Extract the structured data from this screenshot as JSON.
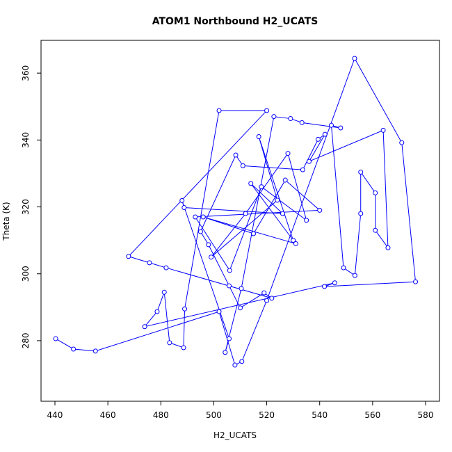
{
  "chart_data": {
    "type": "line",
    "title": "ATOM1 Northbound H2_UCATS",
    "x_label": "H2_UCATS",
    "y_label": "Theta (K)",
    "xlim": [
      434.75,
      585.25
    ],
    "xticks": [
      440,
      460,
      480,
      500,
      520,
      540,
      560,
      580
    ],
    "ylim": [
      261.9,
      369.8
    ],
    "yticks": [
      280,
      300,
      320,
      340,
      360
    ],
    "grid": false,
    "markers": true,
    "x": [
      440.3,
      447,
      455.3,
      502,
      508,
      510.6,
      520,
      553.2,
      571,
      576.2,
      541.8,
      545.7,
      473.9,
      478.6,
      481.3,
      483.3,
      488.6,
      489,
      502,
      520,
      467.8,
      475.7,
      482,
      521.9,
      519,
      510,
      505.8,
      498,
      495,
      508.3,
      511,
      533.6,
      539.4,
      542,
      536,
      564,
      565.8,
      561,
      561,
      555.5,
      555.5,
      553.3,
      549,
      544.4,
      547.9,
      533.3,
      529,
      522.7,
      510.4,
      504.3,
      505.8,
      488,
      488.8,
      526,
      514,
      530,
      517,
      524,
      499,
      512,
      528,
      535,
      518,
      506,
      493,
      540,
      527,
      515,
      496,
      531
    ],
    "series": [
      {
        "color": "#0000ff",
        "values": [
          280.6,
          277.5,
          276.9,
          288.7,
          272.7,
          273.8,
          292,
          364.4,
          339.2,
          297.6,
          296.2,
          297.3,
          284.2,
          288.7,
          294.5,
          279.4,
          277.9,
          289.5,
          348.8,
          348.8,
          305.2,
          303.3,
          301.8,
          292.7,
          294.3,
          289.8,
          296.4,
          308.7,
          312.6,
          335.5,
          332.3,
          331.1,
          340.2,
          341.7,
          333.6,
          342.9,
          307.8,
          313,
          324.2,
          330.4,
          318,
          299.5,
          301.8,
          344.4,
          343.6,
          345.2,
          346.4,
          347,
          295.6,
          276.5,
          280.6,
          321.9,
          319.8,
          318,
          327,
          310,
          341,
          322,
          305,
          318,
          336,
          316,
          326,
          301,
          317,
          319,
          328,
          312,
          317,
          309
        ]
      }
    ]
  }
}
